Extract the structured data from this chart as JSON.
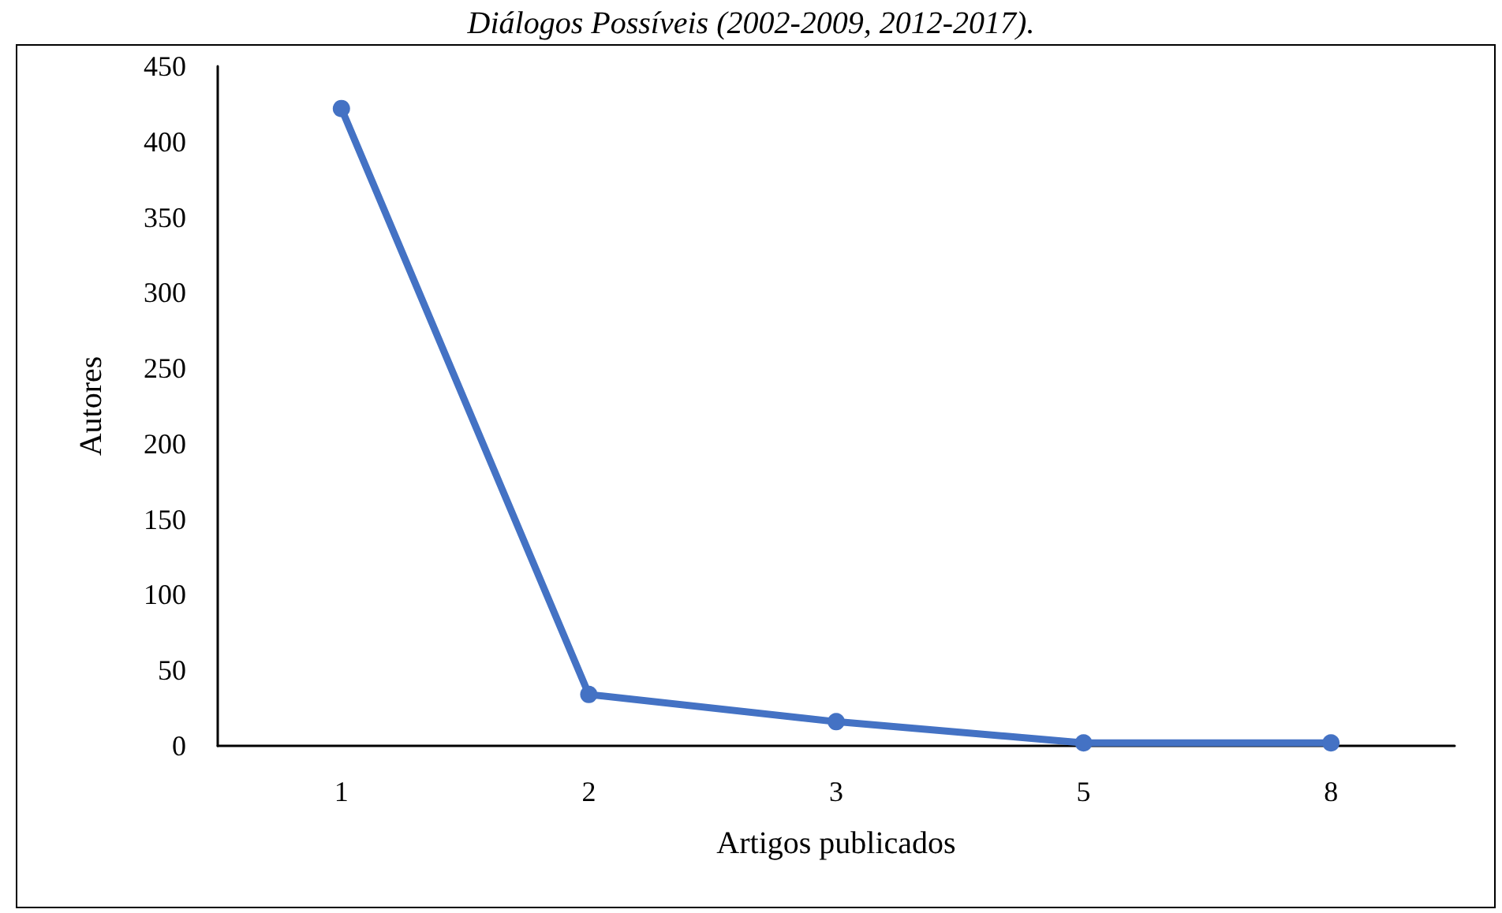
{
  "chart_data": {
    "type": "line",
    "title": "Diálogos Possíveis (2002-2009, 2012-2017).",
    "xlabel": "Artigos publicados",
    "ylabel": "Autores",
    "categories": [
      "1",
      "2",
      "3",
      "5",
      "8"
    ],
    "series": [
      {
        "color": "#4472c4",
        "values": [
          422,
          34,
          16,
          2,
          2
        ]
      }
    ],
    "ylim": [
      0,
      450
    ],
    "yticks": [
      0,
      50,
      100,
      150,
      200,
      250,
      300,
      350,
      400,
      450
    ],
    "marker": "circle",
    "line_style": "solid"
  }
}
